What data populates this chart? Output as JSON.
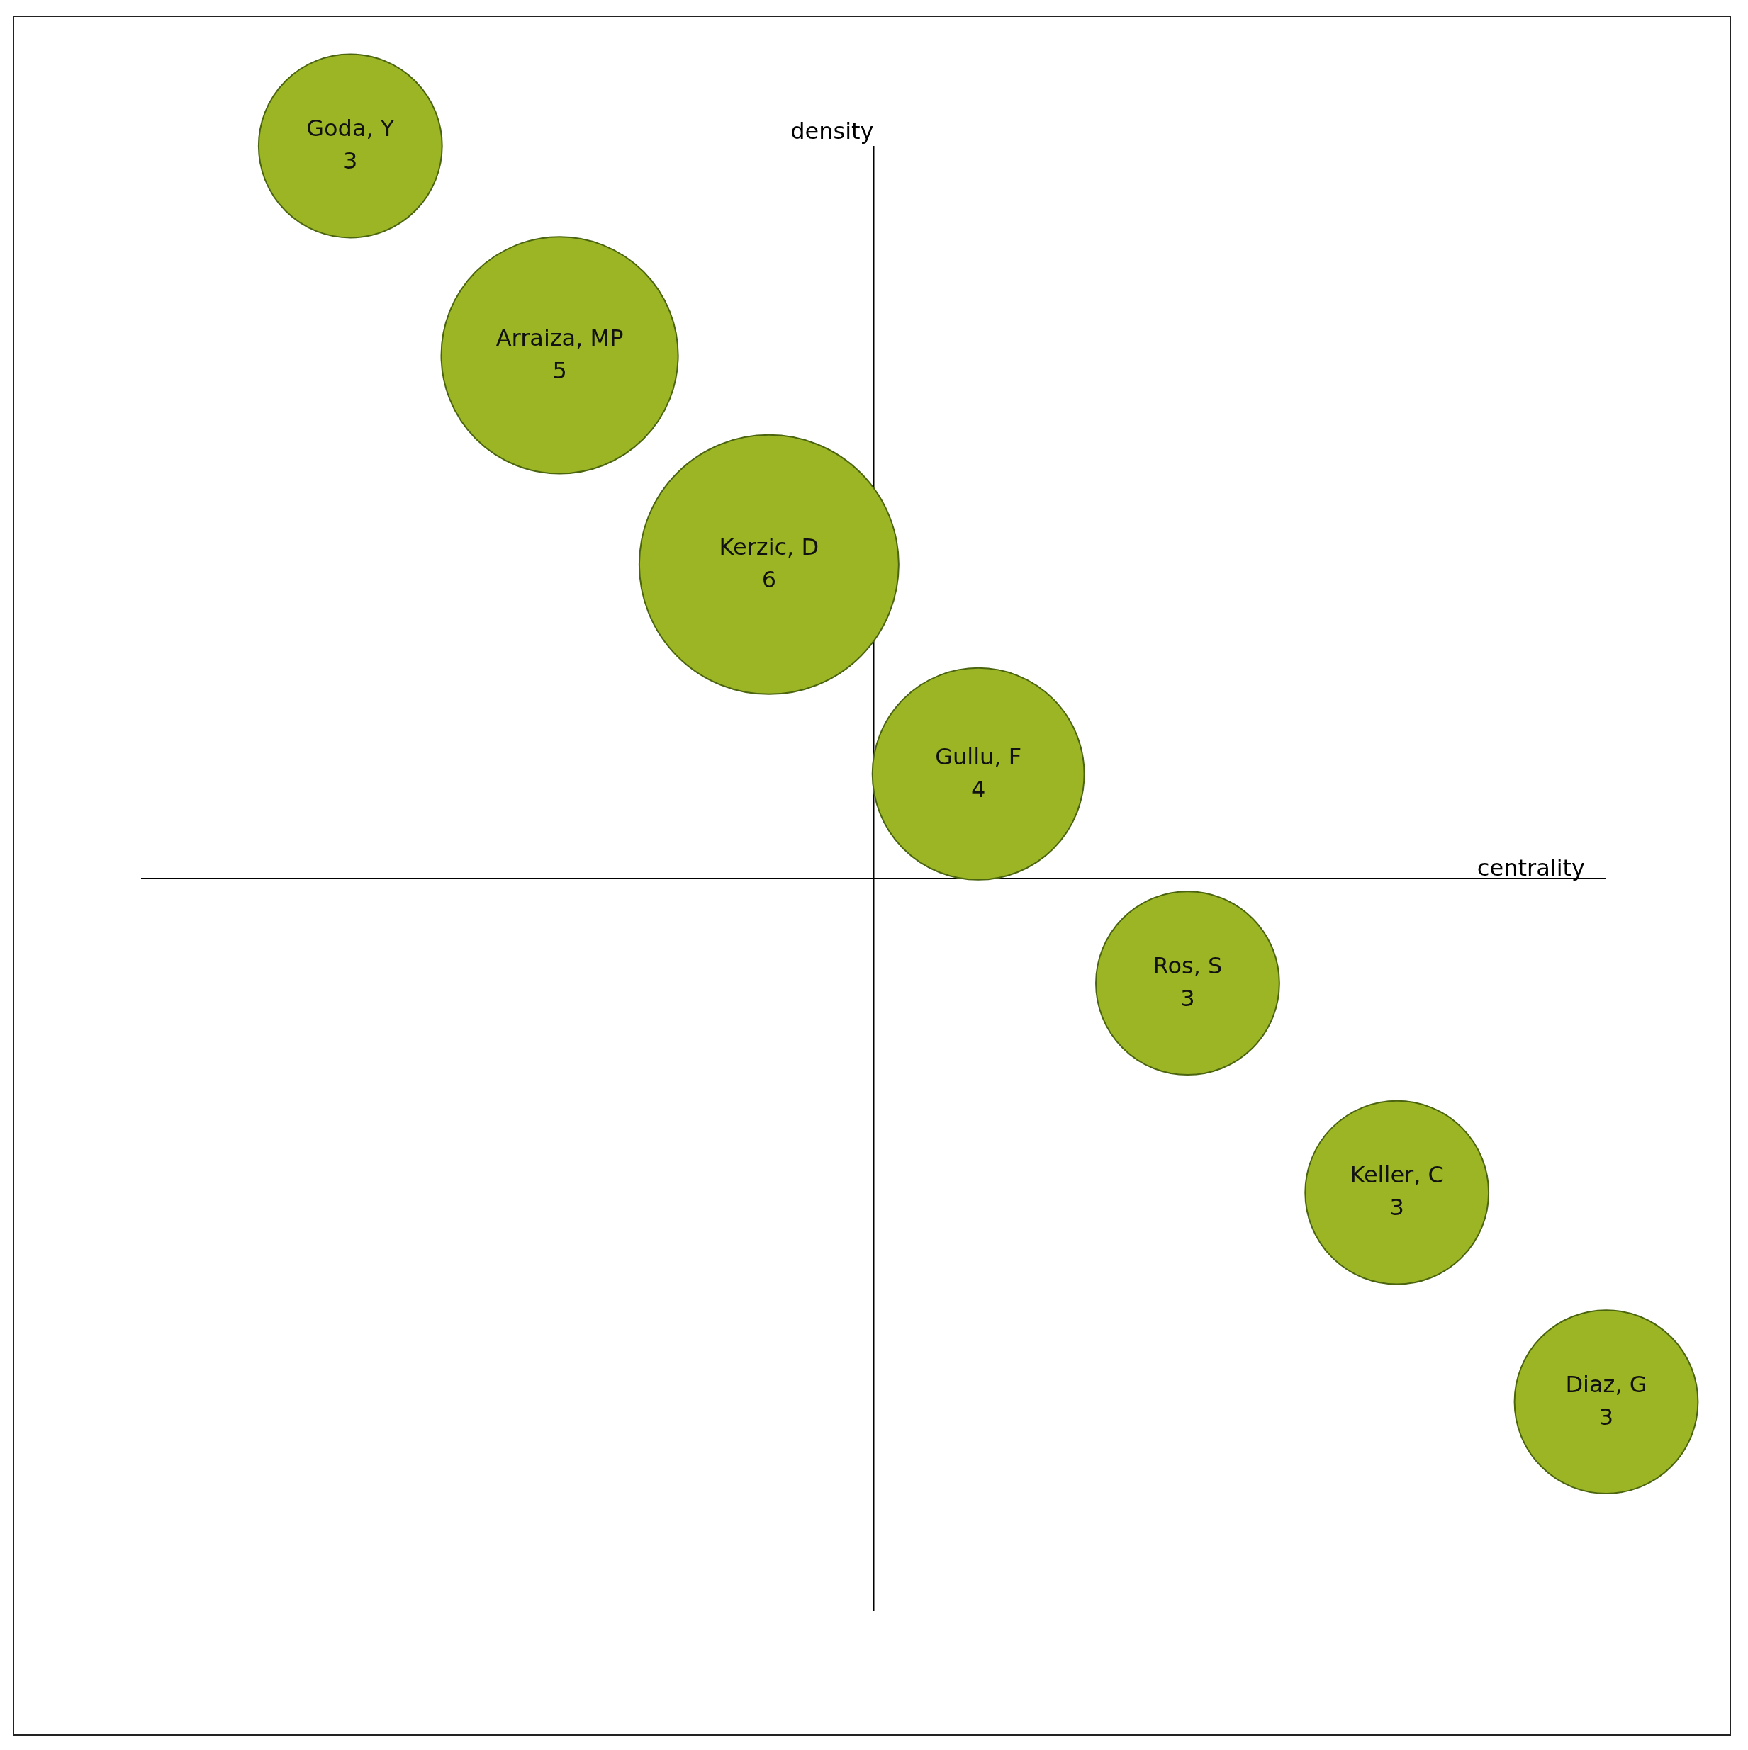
{
  "chart_data": {
    "type": "other",
    "xlabel": "centrality",
    "ylabel": "density",
    "categories": [
      "Goda, Y",
      "Arraiza, MP",
      "Kerzic, D",
      "Gullu, F",
      "Ros, S",
      "Keller, C",
      "Diaz, G"
    ],
    "values": [
      3,
      5,
      6,
      4,
      3,
      3,
      3
    ],
    "data_labels": true,
    "color": "#9bb524"
  }
}
